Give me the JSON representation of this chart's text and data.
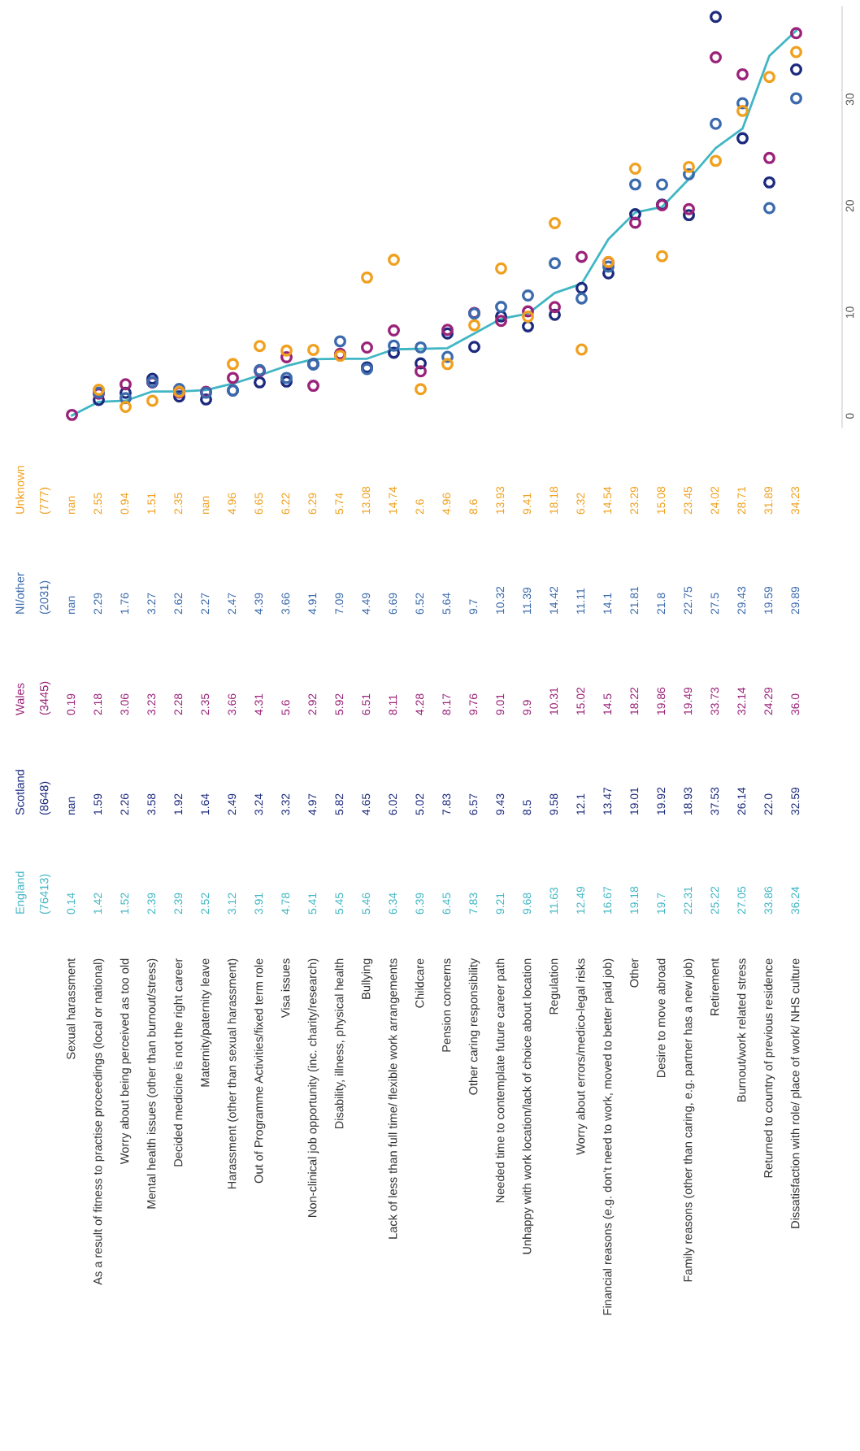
{
  "chart_data": {
    "type": "scatter",
    "marker": "circle",
    "grid": false,
    "legend": false,
    "categories": [
      "Sexual harassment",
      "As a result of fitness to practise proceedings (local or national)",
      "Worry about being perceived as too old",
      "Mental health issues (other than burnout/stress)",
      "Decided medicine is not the right career",
      "Maternity/paternity leave",
      "Harassment (other than sexual harassment)",
      "Out of Programme Activities/fixed term role",
      "Visa issues",
      "Non-clinical job opportunity (inc. charity/research)",
      "Disability, illness, physical health",
      "Bullying",
      "Lack of less than full time/ flexible work arrangements",
      "Childcare",
      "Pension concerns",
      "Other caring responsibility",
      "Needed time to contemplate future career path",
      "Unhappy with work location/lack of choice about location",
      "Regulation",
      "Worry about errors/medico-legal risks",
      "Financial reasons (e.g. don't need to work, moved to better paid job)",
      "Other",
      "Desire to move abroad",
      "Family reasons (other than caring, e.g. partner has a new job)",
      "Retirement",
      "Burnout/work related stress",
      "Returned to country of previous residence",
      "Dissatisfaction with role/ place of work/ NHS culture"
    ],
    "y2lim": [
      -1,
      38.5
    ],
    "y2ticks": [
      0,
      10,
      20,
      30
    ],
    "series": [
      {
        "name": "England (76413)",
        "type": "line",
        "axis": "y2",
        "marker": "none",
        "color": "#41b6c4",
        "values": [
          0.14,
          1.42,
          1.52,
          2.39,
          2.39,
          2.52,
          3.12,
          3.91,
          4.78,
          5.41,
          5.45,
          5.46,
          6.34,
          6.39,
          6.45,
          7.83,
          9.21,
          9.68,
          11.63,
          12.49,
          16.67,
          19.18,
          19.7,
          22.31,
          25.22,
          27.05,
          33.86,
          36.24
        ],
        "value_labels": [
          "0.14",
          "1.42",
          "1.52",
          "2.39",
          "2.39",
          "2.52",
          "3.12",
          "3.91",
          "4.78",
          "5.41",
          "5.45",
          "5.46",
          "6.34",
          "6.39",
          "6.45",
          "7.83",
          "9.21",
          "9.68",
          "11.63",
          "12.49",
          "16.67",
          "19.18",
          "19.7",
          "22.31",
          "25.22",
          "27.05",
          "33.86",
          "36.24"
        ]
      },
      {
        "name": "Scotland (8648)",
        "axis": "y2",
        "color": "#1c2a7e",
        "values": [
          null,
          1.59,
          2.26,
          3.58,
          1.92,
          1.64,
          2.49,
          3.24,
          3.32,
          4.97,
          5.82,
          4.65,
          6.02,
          5.02,
          7.83,
          6.57,
          9.43,
          8.5,
          9.58,
          12.1,
          13.47,
          19.01,
          19.92,
          18.93,
          37.53,
          26.14,
          22.0,
          32.59
        ],
        "value_labels": [
          "nan",
          "1.59",
          "2.26",
          "3.58",
          "1.92",
          "1.64",
          "2.49",
          "3.24",
          "3.32",
          "4.97",
          "5.82",
          "4.65",
          "6.02",
          "5.02",
          "7.83",
          "6.57",
          "9.43",
          "8.5",
          "9.58",
          "12.1",
          "13.47",
          "19.01",
          "19.92",
          "18.93",
          "37.53",
          "26.14",
          "22.0",
          "32.59"
        ]
      },
      {
        "name": "Wales (3445)",
        "axis": "y2",
        "color": "#9b2279",
        "values": [
          0.19,
          2.18,
          3.06,
          3.23,
          2.28,
          2.35,
          3.66,
          4.31,
          5.6,
          2.92,
          5.92,
          6.51,
          8.11,
          4.28,
          8.17,
          9.76,
          9.01,
          9.9,
          10.31,
          15.02,
          14.5,
          18.22,
          19.86,
          19.49,
          33.73,
          32.14,
          24.29,
          36.0
        ],
        "value_labels": [
          "0.19",
          "2.18",
          "3.06",
          "3.23",
          "2.28",
          "2.35",
          "3.66",
          "4.31",
          "5.6",
          "2.92",
          "5.92",
          "6.51",
          "8.11",
          "4.28",
          "8.17",
          "9.76",
          "9.01",
          "9.9",
          "10.31",
          "15.02",
          "14.5",
          "18.22",
          "19.86",
          "19.49",
          "33.73",
          "32.14",
          "24.29",
          "36.0"
        ]
      },
      {
        "name": "NI/other (2031)",
        "axis": "y2",
        "color": "#3b6aad",
        "values": [
          null,
          2.29,
          1.76,
          3.27,
          2.62,
          2.27,
          2.47,
          4.39,
          3.66,
          4.91,
          7.09,
          4.49,
          6.69,
          6.52,
          5.64,
          9.7,
          10.32,
          11.39,
          14.42,
          11.11,
          14.1,
          21.81,
          21.8,
          22.75,
          27.5,
          29.43,
          19.59,
          29.89
        ],
        "value_labels": [
          "nan",
          "2.29",
          "1.76",
          "3.27",
          "2.62",
          "2.27",
          "2.47",
          "4.39",
          "3.66",
          "4.91",
          "7.09",
          "4.49",
          "6.69",
          "6.52",
          "5.64",
          "9.7",
          "10.32",
          "11.39",
          "14.42",
          "11.11",
          "14.1",
          "21.81",
          "21.8",
          "22.75",
          "27.5",
          "29.43",
          "19.59",
          "29.89"
        ]
      },
      {
        "name": "Unknown (777)",
        "axis": "y2",
        "color": "#f0a01e",
        "values": [
          null,
          2.55,
          0.94,
          1.51,
          2.35,
          null,
          4.96,
          6.65,
          6.22,
          6.29,
          5.74,
          13.08,
          14.74,
          2.6,
          4.96,
          8.6,
          13.93,
          9.41,
          18.18,
          6.32,
          14.54,
          23.29,
          15.08,
          23.45,
          24.02,
          28.71,
          31.89,
          34.23
        ],
        "value_labels": [
          "nan",
          "2.55",
          "0.94",
          "1.51",
          "2.35",
          "nan",
          "4.96",
          "6.65",
          "6.22",
          "6.29",
          "5.74",
          "13.08",
          "14.74",
          "2.6",
          "4.96",
          "8.6",
          "13.93",
          "9.41",
          "18.18",
          "6.32",
          "14.54",
          "23.29",
          "15.08",
          "23.45",
          "24.02",
          "28.71",
          "31.89",
          "34.23"
        ]
      }
    ]
  }
}
